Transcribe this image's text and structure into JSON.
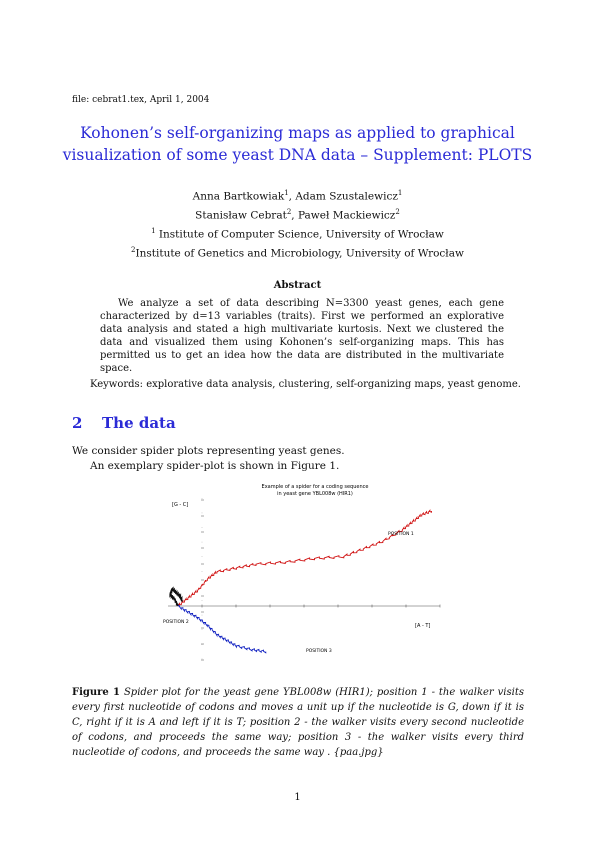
{
  "header": {
    "file_line": "file: cebrat1.tex, April 1, 2004"
  },
  "title": {
    "line1": "Kohonen’s self-organizing maps as applied to graphical",
    "line2": "visualization of some yeast DNA data – Supplement: PLOTS"
  },
  "authors": {
    "line1_a": "Anna Bartkowiak",
    "line1_a_sup": "1",
    "line1_b": ", Adam Szustalewicz",
    "line1_b_sup": "1",
    "line2_a": "Stanisław Cebrat",
    "line2_a_sup": "2",
    "line2_b": ", Paweł Mackiewicz",
    "line2_b_sup": "2",
    "aff1_sup": "1",
    "aff1": " Institute of Computer Science, University of Wrocław",
    "aff2_sup": "2",
    "aff2": "Institute of Genetics and Microbiology, University of Wrocław"
  },
  "abstract": {
    "heading": "Abstract",
    "text": "We analyze a set of data describing N=3300 yeast genes, each gene characterized by d=13 variables (traits). First we performed an explorative data analysis and stated a high multivariate kurtosis. Next we clustered the data and visualized them using Kohonen’s self-organizing maps. This has permitted us to get an idea how the data are distributed in the multivariate space."
  },
  "keywords": "Keywords: explorative data analysis, clustering, self-organizing maps, yeast genome.",
  "section": {
    "number": "2",
    "title": "The data"
  },
  "body": {
    "line1": "We consider spider plots representing yeast genes.",
    "line2": "An exemplary spider-plot is shown in Figure 1."
  },
  "figure": {
    "title_line1": "Example of a spider for a coding sequence",
    "title_line2": "in yeast gene YBL008w (HIR1)",
    "y_axis_label": "[G - C]",
    "x_axis_label": "[A - T]",
    "position1_label": "POSITION 1",
    "position2_label": "POSITION 2",
    "position3_label": "POSITION 3"
  },
  "chart_data": {
    "type": "line",
    "title": "Example of a spider for a coding sequence in yeast gene YBL008w (HIR1)",
    "xlabel": "[A - T]",
    "ylabel": "[G - C]",
    "series": [
      {
        "name": "POSITION 1",
        "color": "#d01010",
        "x": [
          0,
          5,
          10,
          15,
          20,
          30,
          40,
          55,
          70,
          85,
          95,
          105,
          115,
          120,
          125,
          130
        ],
        "y": [
          0,
          4,
          8,
          14,
          18,
          20,
          22,
          23,
          25,
          26,
          30,
          34,
          40,
          44,
          48,
          50
        ]
      },
      {
        "name": "POSITION 2",
        "color": "#101010",
        "x": [
          0,
          -2,
          -4,
          -3,
          -1,
          1,
          2
        ],
        "y": [
          0,
          4,
          6,
          9,
          7,
          5,
          3
        ]
      },
      {
        "name": "POSITION 3",
        "color": "#1020c0",
        "x": [
          0,
          5,
          10,
          15,
          20,
          25,
          30,
          38,
          45
        ],
        "y": [
          0,
          -3,
          -6,
          -10,
          -15,
          -18,
          -21,
          -23,
          -24
        ]
      }
    ],
    "grid": false
  },
  "caption": {
    "lead": "Figure 1",
    "text": " Spider plot for the yeast gene YBL008w (HIR1); position 1 - the walker visits every first nucleotide of codons and moves a unit up if the nucleotide is G, down if it is C, right if it is A and left if it is T; position 2 - the walker visits every second nucleotide of codons, and proceeds the same way; position 3 - the walker visits every third nucleotide of codons, and proceeds the same way . {paa.jpg}"
  },
  "page_number": "1"
}
